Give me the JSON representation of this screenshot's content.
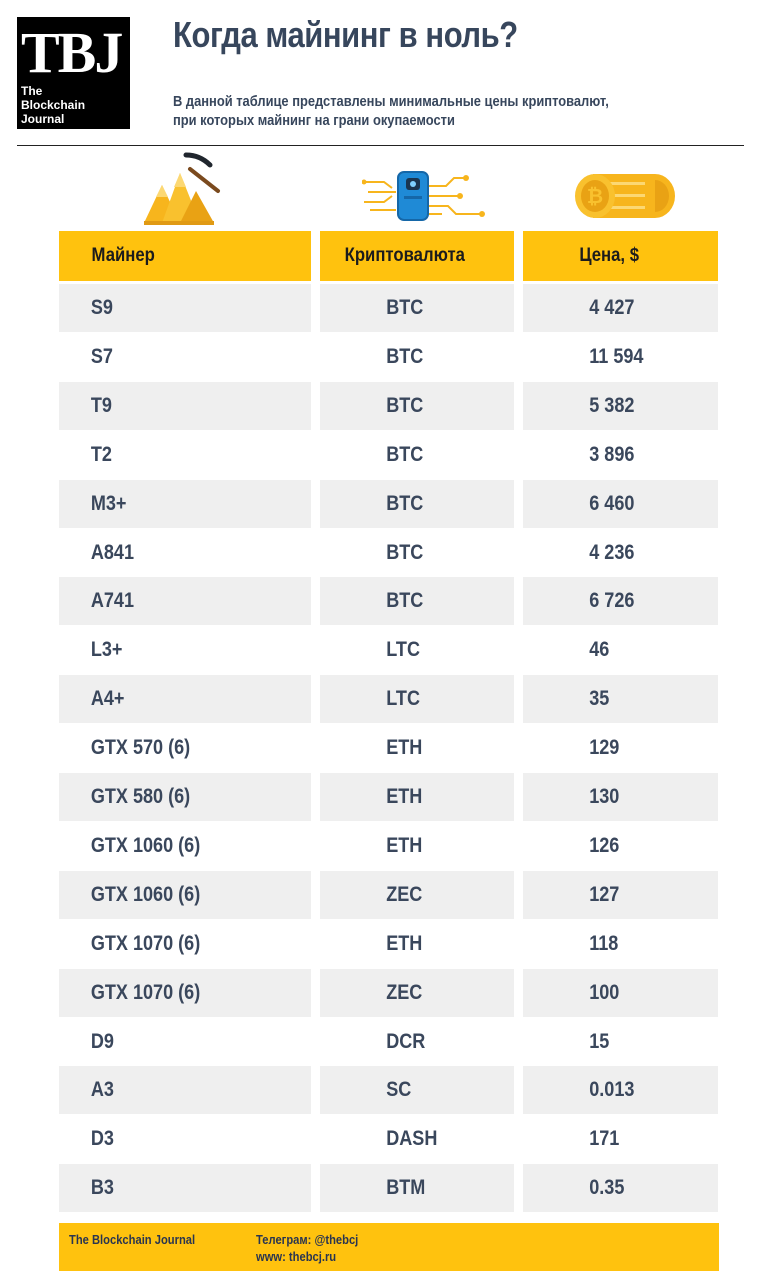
{
  "logo": {
    "big": "TBJ",
    "line1": "The",
    "line2": "Blockchain",
    "line3": "Journal"
  },
  "title": "Когда майнинг в ноль?",
  "subtitle": {
    "line1": "В данной таблице представлены минимальные цены криптовалют,",
    "line2": "при которых майнинг на грани окупаемости"
  },
  "icons": [
    "mining-pile-icon",
    "blockchain-chip-icon",
    "coin-stack-icon"
  ],
  "colors": {
    "accent": "#ffc20e",
    "text": "#37465c",
    "row_shade": "#efefef"
  },
  "table": {
    "headers": [
      "Майнер",
      "Криптовалюта",
      "Цена, $"
    ],
    "rows": [
      [
        "S9",
        "BTC",
        "4 427"
      ],
      [
        "S7",
        "BTC",
        "11 594"
      ],
      [
        "T9",
        "BTC",
        "5 382"
      ],
      [
        "T2",
        "BTC",
        "3 896"
      ],
      [
        "M3+",
        "BTC",
        "6 460"
      ],
      [
        "A841",
        "BTC",
        "4 236"
      ],
      [
        "A741",
        "BTC",
        "6 726"
      ],
      [
        "L3+",
        "LTC",
        "46"
      ],
      [
        "A4+",
        "LTC",
        "35"
      ],
      [
        "GTX 570 (6)",
        "ETH",
        "129"
      ],
      [
        "GTX 580 (6)",
        "ETH",
        "130"
      ],
      [
        "GTX 1060 (6)",
        "ETH",
        "126"
      ],
      [
        "GTX 1060 (6)",
        "ZEC",
        "127"
      ],
      [
        "GTX 1070 (6)",
        "ETH",
        "118"
      ],
      [
        "GTX 1070 (6)",
        "ZEC",
        "100"
      ],
      [
        "D9",
        "DCR",
        "15"
      ],
      [
        "A3",
        "SC",
        "0.013"
      ],
      [
        "D3",
        "DASH",
        "171"
      ],
      [
        "B3",
        "BTM",
        "0.35"
      ]
    ]
  },
  "footer": {
    "brand": "The Blockchain Journal",
    "telegram": "Телеграм: @thebcj",
    "website": "www: thebcj.ru"
  }
}
